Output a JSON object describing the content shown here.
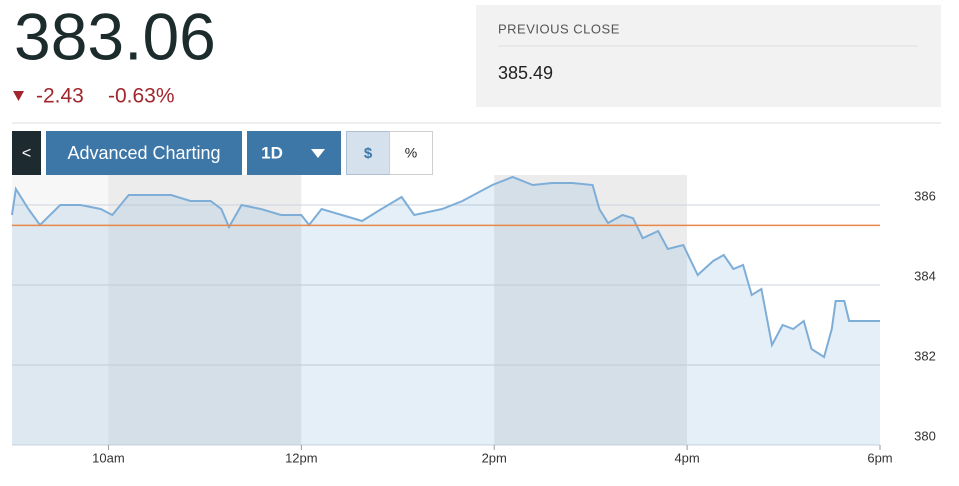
{
  "quote": {
    "price": 383.06,
    "change": -2.43,
    "change_percent": "-0.63%",
    "previous_close_label": "PREVIOUS CLOSE",
    "previous_close": 385.49
  },
  "toolbar": {
    "back": "<",
    "advanced": "Advanced Charting",
    "range": "1D",
    "dollar": "$",
    "percent": "%"
  },
  "chart_data": {
    "type": "line",
    "x": [
      9.0,
      9.04,
      9.17,
      9.29,
      9.5,
      9.71,
      9.92,
      10.04,
      10.21,
      10.44,
      10.65,
      10.85,
      11.06,
      11.17,
      11.25,
      11.38,
      11.58,
      11.79,
      12.0,
      12.08,
      12.21,
      12.42,
      12.63,
      12.83,
      13.04,
      13.17,
      13.46,
      13.67,
      13.98,
      14.19,
      14.4,
      14.6,
      14.81,
      15.02,
      15.09,
      15.18,
      15.33,
      15.44,
      15.54,
      15.7,
      15.8,
      15.96,
      16.11,
      16.27,
      16.38,
      16.48,
      16.58,
      16.67,
      16.77,
      16.88,
      16.99,
      17.1,
      17.21,
      17.29,
      17.42,
      17.5,
      17.54,
      17.63,
      17.68,
      18.0
    ],
    "series": [
      {
        "color": "#7eaed8",
        "values": [
          385.75,
          386.4,
          385.9,
          385.5,
          386.0,
          386.0,
          385.9,
          385.75,
          386.25,
          386.25,
          386.25,
          386.1,
          386.1,
          385.9,
          385.45,
          386.0,
          385.9,
          385.75,
          385.75,
          385.5,
          385.9,
          385.75,
          385.6,
          385.9,
          386.2,
          385.75,
          385.9,
          386.1,
          386.5,
          386.7,
          386.5,
          386.55,
          386.55,
          386.5,
          385.9,
          385.55,
          385.75,
          385.67,
          385.17,
          385.35,
          384.9,
          385.0,
          384.25,
          384.6,
          384.75,
          384.4,
          384.5,
          383.75,
          383.9,
          382.5,
          383.0,
          382.9,
          383.1,
          382.4,
          382.2,
          382.9,
          383.6,
          383.6,
          383.1,
          383.1
        ]
      }
    ],
    "xlim": [
      9,
      18
    ],
    "xticks": [
      {
        "value": 10,
        "label": "10am"
      },
      {
        "value": 12,
        "label": "12pm"
      },
      {
        "value": 14,
        "label": "2pm"
      },
      {
        "value": 16,
        "label": "4pm"
      },
      {
        "value": 18,
        "label": "6pm"
      }
    ],
    "ylim": [
      380,
      386.75
    ],
    "yticks": [
      380,
      382,
      384,
      386
    ],
    "grid": true,
    "reference_color": "#e8874a"
  }
}
